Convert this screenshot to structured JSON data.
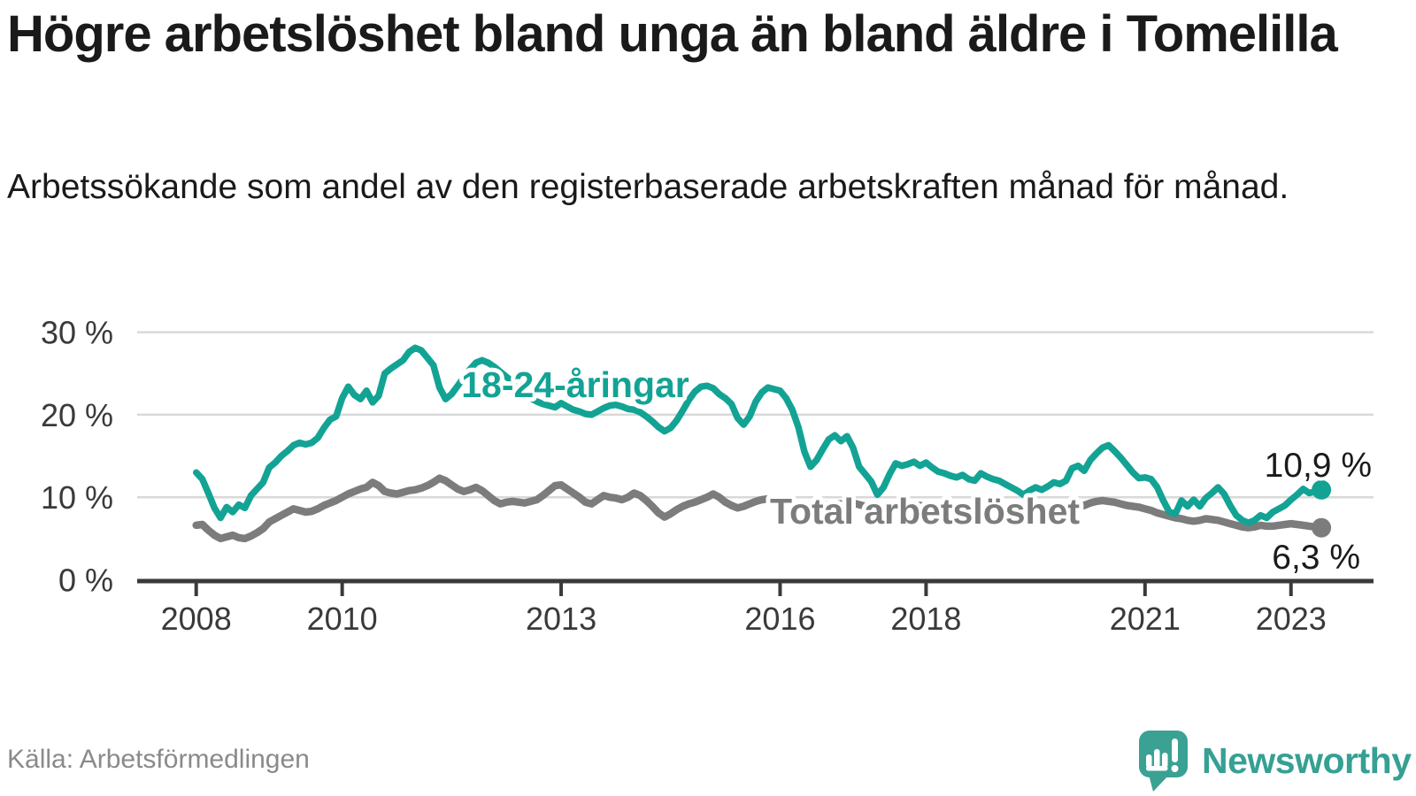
{
  "header": {
    "title": "Högre arbetslöshet bland unga än bland äldre i Tomelilla",
    "subtitle": "Arbetssökande som andel av den registerbaserade arbetskraften månad för månad."
  },
  "footer": {
    "source": "Källa: Arbetsförmedlingen",
    "brand": "Newsworthy",
    "brand_icon": "speech-bubble-bar-chart-exclamation-icon"
  },
  "colors": {
    "accent_teal": "#13a394",
    "series_gray": "#7c7c7c",
    "text_dark": "#1a1a1a",
    "axis": "#3a3a3a",
    "grid": "#d9d9d9",
    "source_gray": "#8a8a8a",
    "brand_teal": "#3aa193"
  },
  "chart_data": {
    "type": "line",
    "unit": "%",
    "x_start_year": 2008,
    "x_end_fraction": 2023.42,
    "points_per_year": 12,
    "x_ticks": [
      2008,
      2010,
      2013,
      2016,
      2018,
      2021,
      2023
    ],
    "y_ticks": [
      0,
      10,
      20,
      30
    ],
    "y_tick_suffix": " %",
    "ylim": [
      0,
      32
    ],
    "grid": true,
    "legend_position": "inline-labels",
    "series": [
      {
        "name": "18-24-åringar",
        "color": "#13a394",
        "end_label": "10,9 %",
        "end_value": 10.9,
        "values": [
          13.0,
          12.2,
          10.5,
          8.7,
          7.5,
          8.8,
          8.2,
          9.1,
          8.7,
          10.2,
          11.0,
          11.8,
          13.6,
          14.2,
          15.0,
          15.6,
          16.3,
          16.6,
          16.4,
          16.6,
          17.2,
          18.4,
          19.4,
          19.8,
          22.0,
          23.4,
          22.4,
          21.9,
          22.9,
          21.5,
          22.3,
          25.0,
          25.6,
          26.1,
          26.6,
          27.6,
          28.1,
          27.8,
          26.9,
          26.0,
          23.3,
          21.9,
          22.5,
          23.5,
          24.5,
          25.5,
          26.3,
          26.6,
          26.3,
          25.8,
          25.2,
          24.6,
          24.0,
          23.2,
          22.6,
          22.0,
          21.6,
          21.3,
          21.1,
          20.9,
          21.4,
          21.0,
          20.6,
          20.4,
          20.1,
          20.0,
          20.4,
          20.8,
          21.1,
          21.2,
          21.0,
          20.7,
          20.6,
          20.3,
          19.8,
          19.2,
          18.5,
          18.0,
          18.4,
          19.3,
          20.5,
          21.8,
          22.8,
          23.4,
          23.5,
          23.2,
          22.5,
          22.0,
          21.3,
          19.6,
          18.8,
          19.8,
          21.6,
          22.7,
          23.3,
          23.1,
          22.9,
          22.0,
          20.6,
          18.5,
          15.5,
          13.7,
          14.5,
          15.8,
          17.0,
          17.5,
          16.8,
          17.4,
          16.0,
          13.7,
          12.8,
          11.9,
          10.3,
          11.2,
          12.8,
          14.1,
          13.8,
          14.0,
          14.3,
          13.8,
          14.2,
          13.6,
          13.1,
          12.9,
          12.6,
          12.4,
          12.7,
          12.2,
          12.0,
          12.9,
          12.5,
          12.2,
          12.0,
          11.6,
          11.2,
          10.8,
          10.3,
          10.8,
          11.2,
          10.9,
          11.3,
          11.8,
          11.6,
          12.0,
          13.5,
          13.8,
          13.2,
          14.5,
          15.3,
          16.0,
          16.3,
          15.6,
          14.8,
          13.9,
          13.0,
          12.3,
          12.4,
          12.2,
          11.2,
          9.6,
          8.2,
          8.0,
          9.6,
          8.9,
          9.7,
          8.9,
          9.9,
          10.5,
          11.2,
          10.4,
          9.0,
          7.8,
          7.2,
          6.9,
          7.2,
          7.8,
          7.5,
          8.2,
          8.6,
          9.0,
          9.7,
          10.3,
          11.0,
          10.5,
          10.7,
          10.9
        ]
      },
      {
        "name": "Total arbetslöshet",
        "color": "#7c7c7c",
        "end_label": "6,3 %",
        "end_value": 6.3,
        "values": [
          6.6,
          6.7,
          6.0,
          5.4,
          5.0,
          5.2,
          5.4,
          5.1,
          5.0,
          5.3,
          5.7,
          6.2,
          7.0,
          7.4,
          7.8,
          8.2,
          8.6,
          8.4,
          8.2,
          8.3,
          8.6,
          9.0,
          9.3,
          9.6,
          10.0,
          10.4,
          10.7,
          11.0,
          11.2,
          11.8,
          11.4,
          10.7,
          10.5,
          10.4,
          10.6,
          10.8,
          10.9,
          11.1,
          11.4,
          11.8,
          12.3,
          12.0,
          11.5,
          11.0,
          10.7,
          10.9,
          11.2,
          10.8,
          10.2,
          9.6,
          9.2,
          9.4,
          9.5,
          9.4,
          9.3,
          9.5,
          9.7,
          10.2,
          10.8,
          11.4,
          11.5,
          11.0,
          10.5,
          10.0,
          9.4,
          9.2,
          9.7,
          10.2,
          10.0,
          9.9,
          9.7,
          10.0,
          10.5,
          10.2,
          9.6,
          8.9,
          8.1,
          7.6,
          8.0,
          8.5,
          8.9,
          9.2,
          9.4,
          9.7,
          10.0,
          10.4,
          10.0,
          9.4,
          9.0,
          8.7,
          8.9,
          9.2,
          9.5,
          9.7,
          9.8,
          9.7,
          9.6,
          9.4,
          9.2,
          9.0,
          8.8,
          8.7,
          8.9,
          9.0,
          9.1,
          9.2,
          9.2,
          9.3,
          9.3,
          9.1,
          8.9,
          8.7,
          8.5,
          8.6,
          8.8,
          9.0,
          9.1,
          9.1,
          9.0,
          9.0,
          8.9,
          8.7,
          8.5,
          8.4,
          8.3,
          8.3,
          8.5,
          8.4,
          8.3,
          8.4,
          8.4,
          8.5,
          8.5,
          8.4,
          8.3,
          8.2,
          8.2,
          8.3,
          8.5,
          8.4,
          8.5,
          8.6,
          8.7,
          8.8,
          8.9,
          8.9,
          9.0,
          9.3,
          9.5,
          9.6,
          9.5,
          9.4,
          9.2,
          9.0,
          8.9,
          8.8,
          8.6,
          8.4,
          8.1,
          7.9,
          7.7,
          7.5,
          7.4,
          7.2,
          7.1,
          7.2,
          7.4,
          7.3,
          7.2,
          7.0,
          6.8,
          6.6,
          6.4,
          6.3,
          6.4,
          6.6,
          6.5,
          6.5,
          6.6,
          6.7,
          6.8,
          6.7,
          6.6,
          6.5,
          6.4,
          6.3
        ]
      }
    ]
  }
}
